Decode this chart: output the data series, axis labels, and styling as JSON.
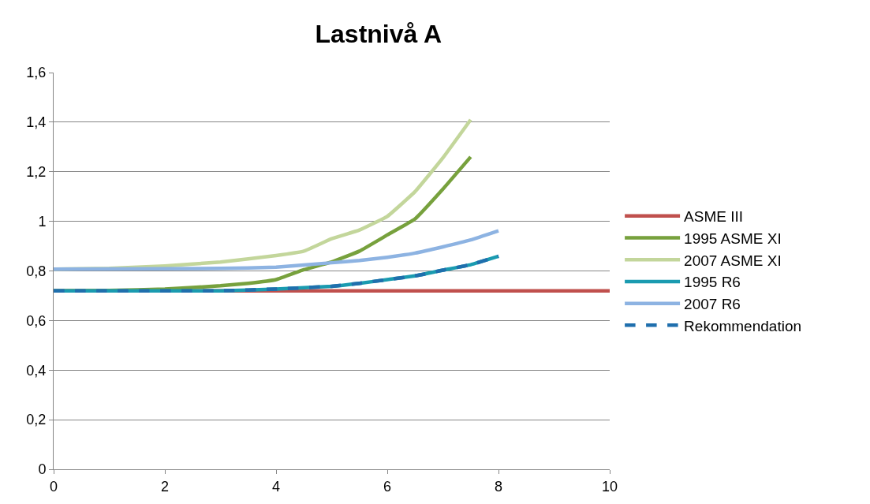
{
  "chart_data": {
    "type": "line",
    "title": "Lastnivå A",
    "xlim": [
      0,
      10
    ],
    "xticks": [
      0,
      2,
      4,
      6,
      8,
      10
    ],
    "ylim": [
      0,
      1.6
    ],
    "yticks": [
      0,
      {
        "value": 0.2,
        "label": "0,2"
      },
      {
        "value": 0.4,
        "label": "0,4"
      },
      {
        "value": 0.6,
        "label": "0,6"
      },
      {
        "value": 0.8,
        "label": "0,8"
      },
      1,
      {
        "value": 1.2,
        "label": "1,2"
      },
      {
        "value": 1.4,
        "label": "1,4"
      },
      {
        "value": 1.6,
        "label": "1,6"
      }
    ],
    "grid": "y",
    "legend": "right",
    "marker": "none",
    "series": [
      {
        "name": "ASME III",
        "color": "#c0504d",
        "x": [
          0,
          10
        ],
        "values": [
          0.72,
          0.72
        ]
      },
      {
        "name": "1995 ASME XI",
        "color": "#77a13d",
        "x": [
          0,
          1,
          2,
          3,
          3.5,
          4,
          4.5,
          5,
          5.5,
          6,
          6.5,
          7,
          7.5
        ],
        "values": [
          0.72,
          0.721,
          0.727,
          0.74,
          0.75,
          0.765,
          0.805,
          0.836,
          0.88,
          0.945,
          1.01,
          1.13,
          1.26
        ]
      },
      {
        "name": "2007 ASME XI",
        "color": "#c3d69b",
        "x": [
          0,
          1,
          2,
          3,
          4,
          4.5,
          5,
          5.5,
          6,
          6.5,
          7,
          7.5
        ],
        "values": [
          0.807,
          0.81,
          0.82,
          0.836,
          0.862,
          0.88,
          0.93,
          0.965,
          1.02,
          1.12,
          1.256,
          1.41
        ]
      },
      {
        "name": "1995 R6",
        "color": "#1a9bb0",
        "x": [
          0,
          3,
          4,
          5,
          5.5,
          6,
          6.5,
          7,
          7.5,
          8
        ],
        "values": [
          0.72,
          0.72,
          0.727,
          0.738,
          0.75,
          0.765,
          0.78,
          0.803,
          0.825,
          0.859
        ]
      },
      {
        "name": "2007 R6",
        "color": "#8db3e2",
        "x": [
          0,
          3,
          4,
          5,
          5.5,
          6,
          6.5,
          7,
          7.5,
          8
        ],
        "values": [
          0.807,
          0.81,
          0.815,
          0.833,
          0.842,
          0.855,
          0.872,
          0.897,
          0.925,
          0.962
        ]
      },
      {
        "name": "Rekommendation",
        "color": "#1f6fad",
        "line_style": "dashed",
        "x": [
          0,
          3,
          4,
          5,
          5.5,
          6,
          6.5,
          7,
          7.5,
          8
        ],
        "values": [
          0.72,
          0.72,
          0.727,
          0.738,
          0.75,
          0.765,
          0.78,
          0.803,
          0.825,
          0.859
        ]
      }
    ]
  }
}
